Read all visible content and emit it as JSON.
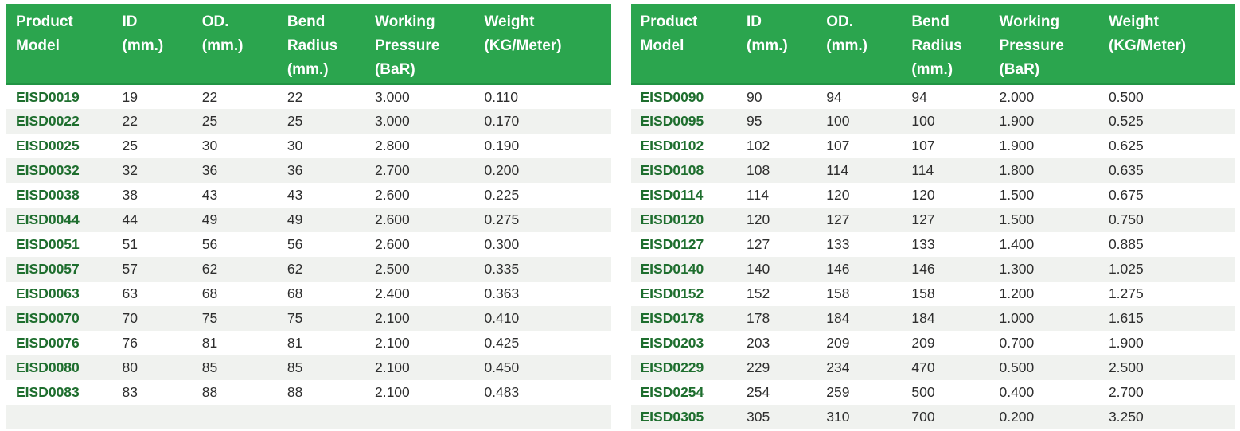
{
  "colors": {
    "header-bg": "#2ba54e",
    "header-edge": "#219444",
    "header-text": "#ffffff",
    "model-text": "#1e6e2e",
    "cell-text": "#2e2e2e",
    "stripe": "#f0f2ef",
    "page-bg": "#ffffff"
  },
  "columns": [
    [
      "Product",
      "Model"
    ],
    [
      "ID",
      "(mm.)"
    ],
    [
      "OD.",
      "(mm.)"
    ],
    [
      "Bend",
      "Radius",
      "(mm.)"
    ],
    [
      "Working",
      "Pressure",
      "(BaR)"
    ],
    [
      "Weight",
      "(KG/Meter)"
    ]
  ],
  "tables": [
    {
      "name": "left",
      "trailing_blank_row": true,
      "rows": [
        [
          "EISD0019",
          "19",
          "22",
          "22",
          "3.000",
          "0.110"
        ],
        [
          "EISD0022",
          "22",
          "25",
          "25",
          "3.000",
          "0.170"
        ],
        [
          "EISD0025",
          "25",
          "30",
          "30",
          "2.800",
          "0.190"
        ],
        [
          "EISD0032",
          "32",
          "36",
          "36",
          "2.700",
          "0.200"
        ],
        [
          "EISD0038",
          "38",
          "43",
          "43",
          "2.600",
          "0.225"
        ],
        [
          "EISD0044",
          "44",
          "49",
          "49",
          "2.600",
          "0.275"
        ],
        [
          "EISD0051",
          "51",
          "56",
          "56",
          "2.600",
          "0.300"
        ],
        [
          "EISD0057",
          "57",
          "62",
          "62",
          "2.500",
          "0.335"
        ],
        [
          "EISD0063",
          "63",
          "68",
          "68",
          "2.400",
          "0.363"
        ],
        [
          "EISD0070",
          "70",
          "75",
          "75",
          "2.100",
          "0.410"
        ],
        [
          "EISD0076",
          "76",
          "81",
          "81",
          "2.100",
          "0.425"
        ],
        [
          "EISD0080",
          "80",
          "85",
          "85",
          "2.100",
          "0.450"
        ],
        [
          "EISD0083",
          "83",
          "88",
          "88",
          "2.100",
          "0.483"
        ]
      ]
    },
    {
      "name": "right",
      "trailing_blank_row": false,
      "rows": [
        [
          "EISD0090",
          "90",
          "94",
          "94",
          "2.000",
          "0.500"
        ],
        [
          "EISD0095",
          "95",
          "100",
          "100",
          "1.900",
          "0.525"
        ],
        [
          "EISD0102",
          "102",
          "107",
          "107",
          "1.900",
          "0.625"
        ],
        [
          "EISD0108",
          "108",
          "114",
          "114",
          "1.800",
          "0.635"
        ],
        [
          "EISD0114",
          "114",
          "120",
          "120",
          "1.500",
          "0.675"
        ],
        [
          "EISD0120",
          "120",
          "127",
          "127",
          "1.500",
          "0.750"
        ],
        [
          "EISD0127",
          "127",
          "133",
          "133",
          "1.400",
          "0.885"
        ],
        [
          "EISD0140",
          "140",
          "146",
          "146",
          "1.300",
          "1.025"
        ],
        [
          "EISD0152",
          "152",
          "158",
          "158",
          "1.200",
          "1.275"
        ],
        [
          "EISD0178",
          "178",
          "184",
          "184",
          "1.000",
          "1.615"
        ],
        [
          "EISD0203",
          "203",
          "209",
          "209",
          "0.700",
          "1.900"
        ],
        [
          "EISD0229",
          "229",
          "234",
          "470",
          "0.500",
          "2.500"
        ],
        [
          "EISD0254",
          "254",
          "259",
          "500",
          "0.400",
          "2.700"
        ],
        [
          "EISD0305",
          "305",
          "310",
          "700",
          "0.200",
          "3.250"
        ]
      ]
    }
  ]
}
